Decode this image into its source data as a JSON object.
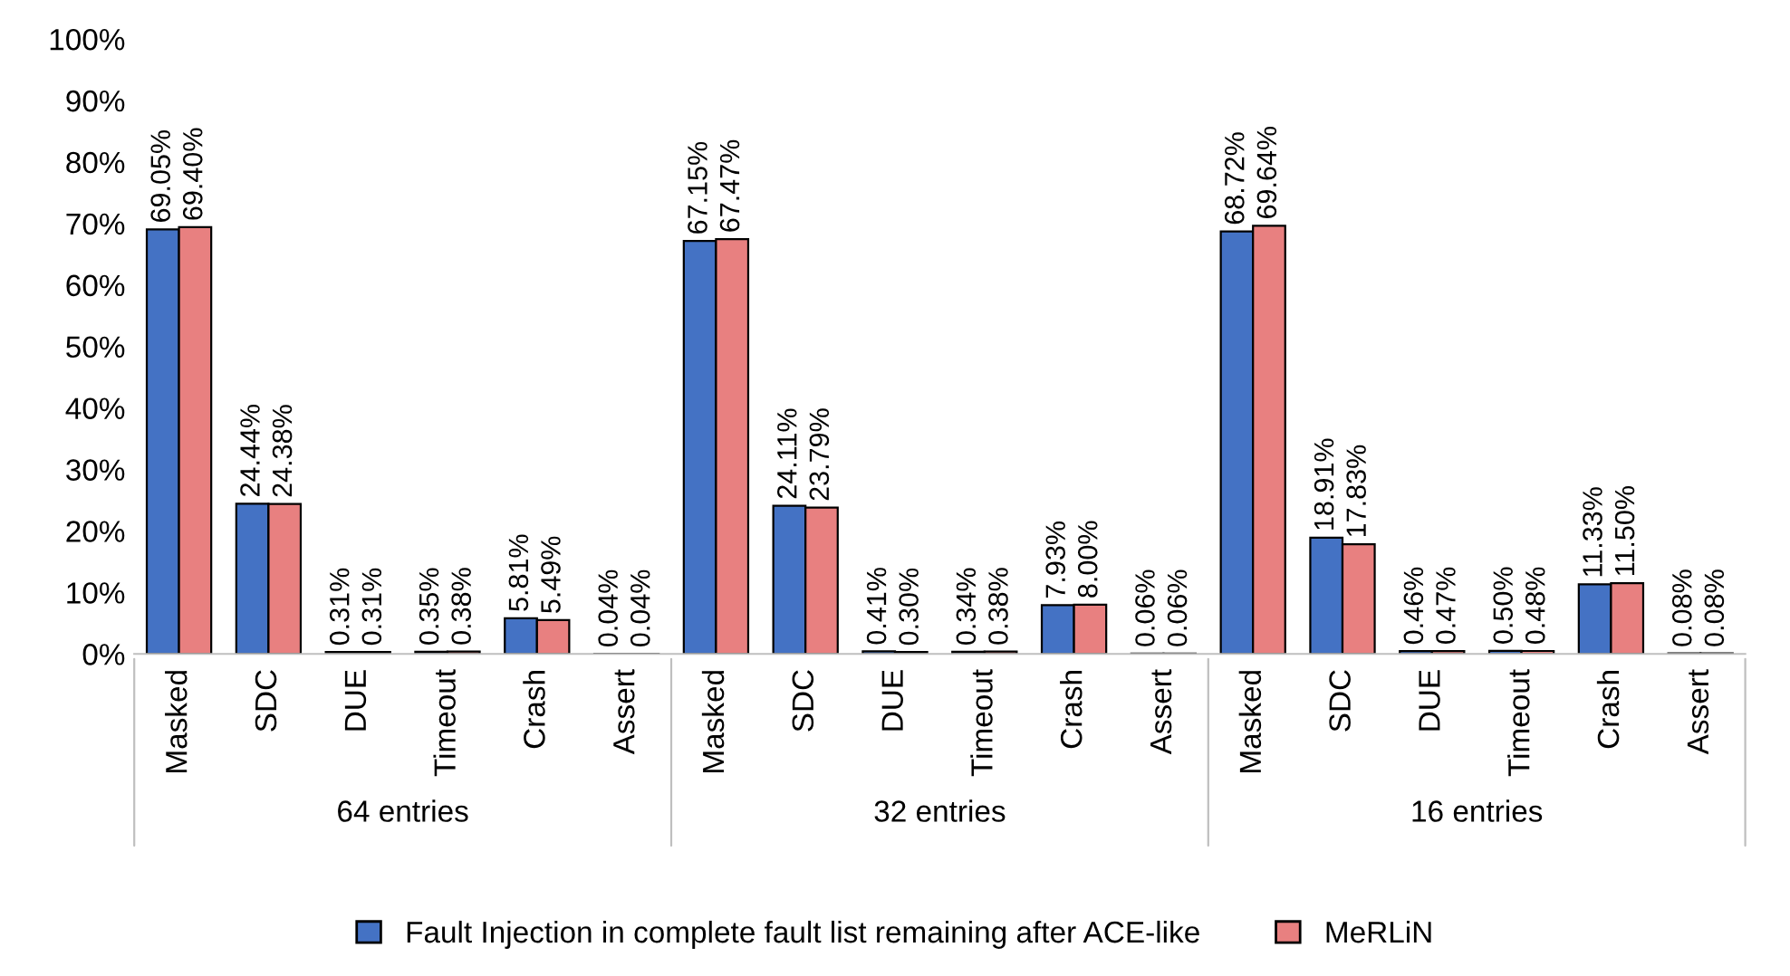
{
  "chart_data": {
    "type": "bar",
    "categories": [
      "Masked",
      "SDC",
      "DUE",
      "Timeout",
      "Crash",
      "Assert",
      "Masked",
      "SDC",
      "DUE",
      "Timeout",
      "Crash",
      "Assert",
      "Masked",
      "SDC",
      "DUE",
      "Timeout",
      "Crash",
      "Assert"
    ],
    "annotations": [
      "64 entries",
      "32 entries",
      "16 entries"
    ],
    "series": [
      {
        "name": "Fault Injection in complete fault list remaining after ACE-like",
        "color": "#4472c4",
        "values": [
          69.05,
          24.44,
          0.31,
          0.35,
          5.81,
          0.04,
          67.15,
          24.11,
          0.41,
          0.34,
          7.93,
          0.06,
          68.72,
          18.91,
          0.46,
          0.5,
          11.33,
          0.08
        ],
        "value_labels": [
          "69.05%",
          "24.44%",
          "0.31%",
          "0.35%",
          "5.81%",
          "0.04%",
          "67.15%",
          "24.11%",
          "0.41%",
          "0.34%",
          "7.93%",
          "0.06%",
          "68.72%",
          "18.91%",
          "0.46%",
          "0.50%",
          "11.33%",
          "0.08%"
        ]
      },
      {
        "name": "MeRLiN",
        "color": "#e88080",
        "values": [
          69.4,
          24.38,
          0.31,
          0.38,
          5.49,
          0.04,
          67.47,
          23.79,
          0.3,
          0.38,
          8.0,
          0.06,
          69.64,
          17.83,
          0.47,
          0.48,
          11.5,
          0.08
        ],
        "value_labels": [
          "69.40%",
          "24.38%",
          "0.31%",
          "0.38%",
          "5.49%",
          "0.04%",
          "67.47%",
          "23.79%",
          "0.30%",
          "0.38%",
          "8.00%",
          "0.06%",
          "69.64%",
          "17.83%",
          "0.47%",
          "0.48%",
          "11.50%",
          "0.08%"
        ]
      }
    ],
    "ylim": [
      0,
      100
    ],
    "yticks": [
      {
        "value": 0,
        "label": "0%"
      },
      {
        "value": 10,
        "label": "10%"
      },
      {
        "value": 20,
        "label": "20%"
      },
      {
        "value": 30,
        "label": "30%"
      },
      {
        "value": 40,
        "label": "40%"
      },
      {
        "value": 50,
        "label": "50%"
      },
      {
        "value": 60,
        "label": "60%"
      },
      {
        "value": 70,
        "label": "70%"
      },
      {
        "value": 80,
        "label": "80%"
      },
      {
        "value": 90,
        "label": "90%"
      },
      {
        "value": 100,
        "label": "100%"
      }
    ],
    "grid": false,
    "legend": "bottom"
  }
}
